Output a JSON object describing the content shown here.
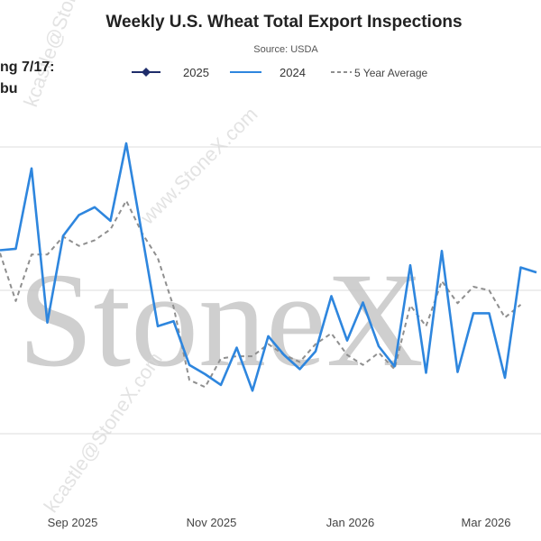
{
  "chart_data": {
    "type": "line",
    "title": "Weekly U.S. Wheat Total Export Inspections",
    "subtitle": "Source: USDA",
    "side_note_lines": [
      "ng 7/17:",
      "bu"
    ],
    "watermark": "StoneX",
    "watermark_diagonal": [
      "www.StoneX.com",
      "kcastle@StoneX.com",
      "kcastle@StoneX.com"
    ],
    "legend": [
      {
        "name": "2025",
        "color": "#1f2d6b",
        "style": "solid-marker"
      },
      {
        "name": "2024",
        "color": "#2e86de",
        "style": "solid"
      },
      {
        "name": "5 Year Average",
        "color": "#8f8f8f",
        "style": "dashed"
      }
    ],
    "x_tick_labels": [
      "Sep 2025",
      "Nov 2025",
      "Jan 2026",
      "Mar 2026"
    ],
    "x_tick_index": [
      4.6,
      13.4,
      22.2,
      30.8
    ],
    "grid": true,
    "series": [
      {
        "name": "2024",
        "color": "#2e86de",
        "values": [
          25.6,
          25.8,
          37.0,
          15.5,
          27.6,
          30.5,
          31.6,
          29.7,
          40.5,
          27.8,
          15.0,
          15.7,
          9.6,
          8.3,
          6.8,
          12.0,
          6.0,
          13.6,
          11.0,
          9.0,
          11.5,
          19.2,
          13.0,
          18.3,
          12.2,
          9.4,
          23.5,
          8.5,
          25.5,
          8.6,
          16.8,
          16.8,
          7.8,
          23.2,
          22.5
        ]
      },
      {
        "name": "5 Year Average",
        "color": "#8f8f8f",
        "values": [
          25.2,
          18.5,
          25.0,
          25.0,
          27.5,
          26.2,
          27.0,
          28.5,
          32.5,
          28.0,
          24.5,
          17.7,
          7.5,
          6.5,
          10.5,
          10.8,
          10.8,
          12.5,
          11.0,
          10.0,
          12.5,
          14.0,
          11.0,
          9.6,
          11.3,
          9.0,
          17.9,
          15.0,
          21.3,
          18.2,
          20.5,
          20.0,
          16.2,
          18.0
        ]
      }
    ]
  }
}
